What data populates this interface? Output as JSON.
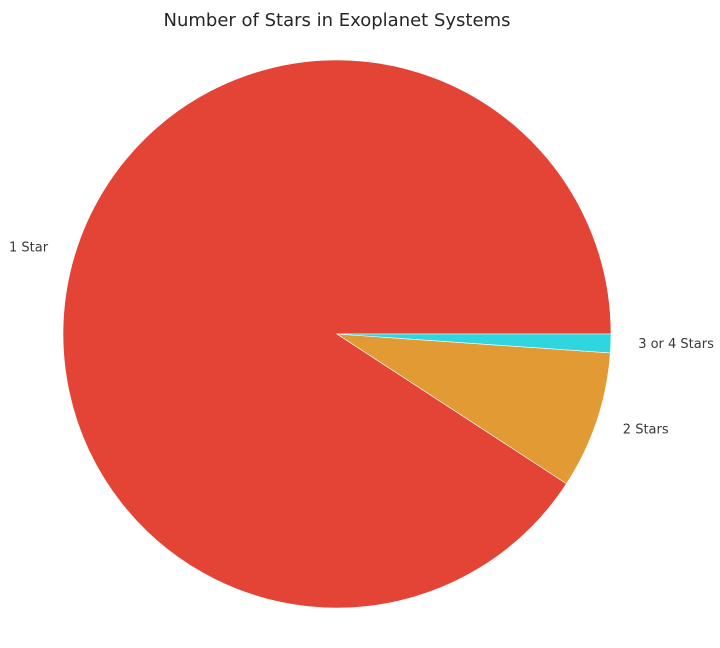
{
  "chart_data": {
    "type": "pie",
    "title": "Number of Stars in Exoplanet Systems",
    "slices": [
      {
        "label": "1 Star",
        "value": 90.8,
        "color": "#e44435"
      },
      {
        "label": "2 Stars",
        "value": 8.1,
        "color": "#e29a35"
      },
      {
        "label": "3 or 4 Stars",
        "value": 1.1,
        "color": "#2fd6e0"
      }
    ],
    "start_angle_deg": 0,
    "direction": "counterclockwise",
    "legend": "none"
  }
}
